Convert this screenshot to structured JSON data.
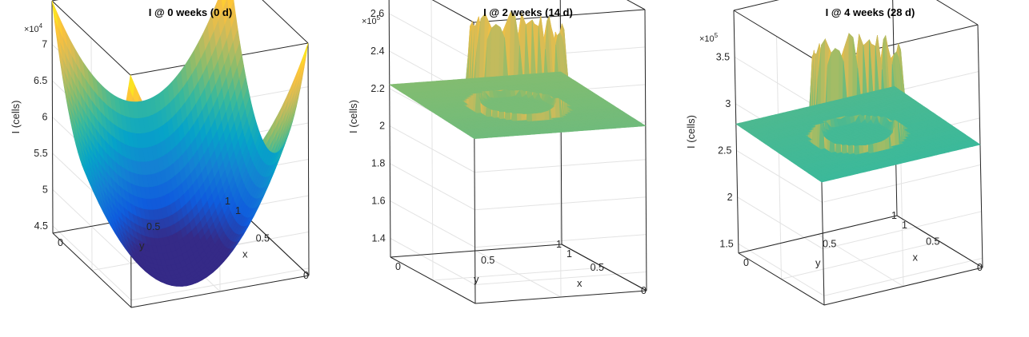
{
  "chart_data": [
    {
      "type": "surface",
      "title": "I @ 0 weeks (0 d)",
      "xlabel": "x",
      "ylabel": "y",
      "zlabel": "I (cells)",
      "z_multiplier": "×10",
      "z_exponent": "4",
      "x_ticks": [
        "0",
        "0.5",
        "1"
      ],
      "y_ticks": [
        "0",
        "0.5",
        "1"
      ],
      "z_ticks": [
        "4.5",
        "5",
        "5.5",
        "6",
        "6.5",
        "7"
      ],
      "zlim": [
        44000,
        76000
      ],
      "surface": {
        "kind": "bowl",
        "zmin": 40000,
        "zmax": 76000
      }
    },
    {
      "type": "surface",
      "title": "I @ 2 weeks (14 d)",
      "xlabel": "x",
      "ylabel": "y",
      "zlabel": "I (cells)",
      "z_multiplier": "×10",
      "z_exponent": "5",
      "x_ticks": [
        "0",
        "0.5",
        "1"
      ],
      "y_ticks": [
        "0",
        "0.5",
        "1"
      ],
      "z_ticks": [
        "1.4",
        "1.6",
        "1.8",
        "2",
        "2.2",
        "2.4",
        "2.6"
      ],
      "zlim": [
        130000,
        280000
      ],
      "surface": {
        "kind": "crater",
        "plateau": 220000,
        "rim": 265000,
        "well": 125000
      }
    },
    {
      "type": "surface",
      "title": "I @ 4 weeks (28 d)",
      "xlabel": "x",
      "ylabel": "y",
      "zlabel": "I (cells)",
      "z_multiplier": "×10",
      "z_exponent": "5",
      "x_ticks": [
        "0",
        "0.5",
        "1"
      ],
      "y_ticks": [
        "0",
        "0.5",
        "1"
      ],
      "z_ticks": [
        "1.5",
        "2",
        "2.5",
        "3",
        "3.5"
      ],
      "zlim": [
        140000,
        400000
      ],
      "surface": {
        "kind": "crater",
        "plateau": 275000,
        "rim": 370000,
        "well": 145000
      }
    }
  ]
}
